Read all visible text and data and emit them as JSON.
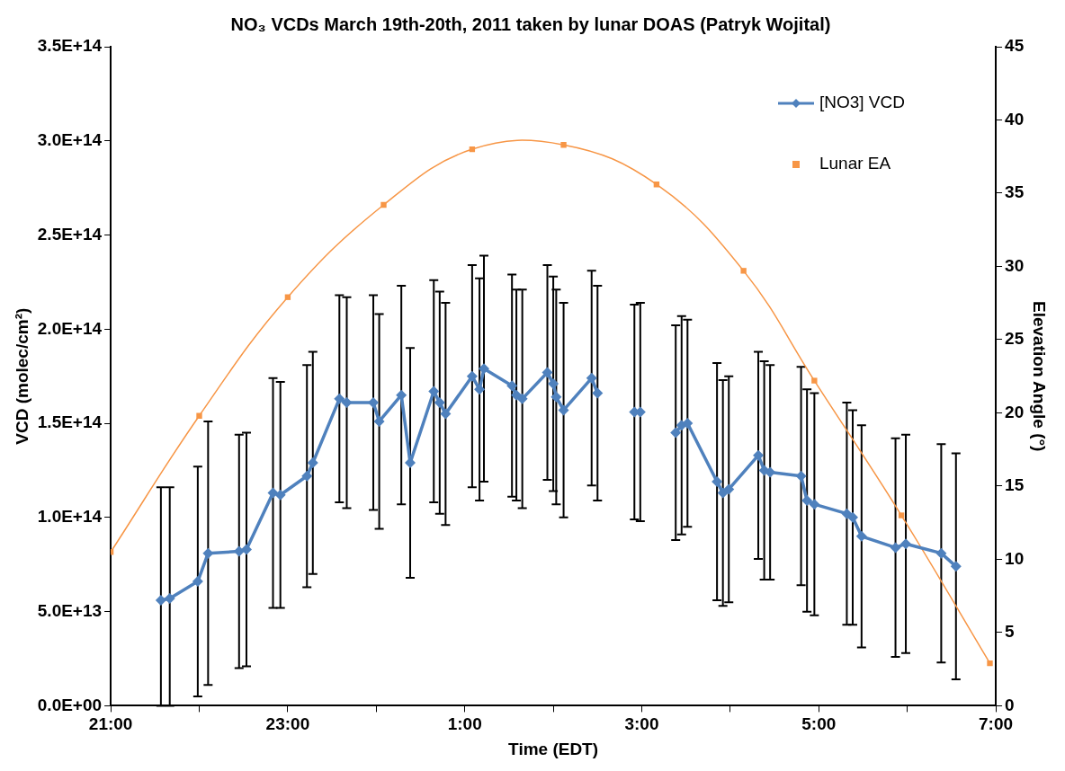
{
  "chart_data": {
    "type": "line",
    "title": "NO₃ VCDs March 19th-20th, 2011 taken by lunar DOAS (Patryk Wojital)",
    "xlabel": "Time (EDT)",
    "ylabel": "VCD (molec/cm²)",
    "y2label": "Elevation Angle (°)",
    "xlim": [
      "2011-03-19T21:00",
      "2011-03-20T07:00"
    ],
    "xticks": [
      {
        "value": "2011-03-19T21:00",
        "label": "21:00"
      },
      {
        "value": "2011-03-19T22:00",
        "label": null
      },
      {
        "value": "2011-03-19T23:00",
        "label": "23:00"
      },
      {
        "value": "2011-03-20T00:00",
        "label": null
      },
      {
        "value": "2011-03-20T01:00",
        "label": "1:00"
      },
      {
        "value": "2011-03-20T02:00",
        "label": null
      },
      {
        "value": "2011-03-20T03:00",
        "label": "3:00"
      },
      {
        "value": "2011-03-20T04:00",
        "label": null
      },
      {
        "value": "2011-03-20T05:00",
        "label": "5:00"
      },
      {
        "value": "2011-03-20T06:00",
        "label": null
      },
      {
        "value": "2011-03-20T07:00",
        "label": "7:00"
      }
    ],
    "ylim": [
      0,
      350000000000000.0
    ],
    "yticks": [
      {
        "value": 0,
        "label": "0.0E+00"
      },
      {
        "value": 50000000000000.0,
        "label": "5.0E+13"
      },
      {
        "value": 100000000000000.0,
        "label": "1.0E+14"
      },
      {
        "value": 150000000000000.0,
        "label": "1.5E+14"
      },
      {
        "value": 200000000000000.0,
        "label": "2.0E+14"
      },
      {
        "value": 250000000000000.0,
        "label": "2.5E+14"
      },
      {
        "value": 300000000000000.0,
        "label": "3.0E+14"
      },
      {
        "value": 350000000000000.0,
        "label": "3.5E+14"
      }
    ],
    "y2lim": [
      0,
      45
    ],
    "y2ticks": [
      0,
      5,
      10,
      15,
      20,
      25,
      30,
      35,
      40,
      45
    ],
    "grid": false,
    "legend": "top right",
    "series": [
      {
        "name": "[NO3] VCD",
        "type": "line",
        "color": "#4f81bd",
        "marker": "diamond",
        "line_style": "solid",
        "x": [
          "2011-03-19T21:34",
          "2011-03-19T21:40",
          "2011-03-19T21:59",
          "2011-03-19T22:06",
          "2011-03-19T22:27",
          "2011-03-19T22:32",
          "2011-03-19T22:50",
          "2011-03-19T22:55",
          "2011-03-19T23:13",
          "2011-03-19T23:17",
          "2011-03-19T23:35",
          "2011-03-19T23:40",
          "2011-03-19T23:58",
          "2011-03-20T00:02",
          "2011-03-20T00:17",
          "2011-03-20T00:23",
          "2011-03-20T00:39",
          "2011-03-20T00:43",
          "2011-03-20T00:47",
          "2011-03-20T01:05",
          "2011-03-20T01:10",
          "2011-03-20T01:13",
          "2011-03-20T01:32",
          "2011-03-20T01:35",
          "2011-03-20T01:39",
          "2011-03-20T01:56",
          "2011-03-20T02:00",
          "2011-03-20T02:02",
          "2011-03-20T02:07",
          "2011-03-20T02:26",
          "2011-03-20T02:30",
          "2011-03-20T02:42",
          "2011-03-20T02:55",
          "2011-03-20T02:59",
          "2011-03-20T03:12",
          "2011-03-20T03:23",
          "2011-03-20T03:27",
          "2011-03-20T03:31",
          "2011-03-20T03:51",
          "2011-03-20T03:55",
          "2011-03-20T03:59",
          "2011-03-20T04:19",
          "2011-03-20T04:23",
          "2011-03-20T04:27",
          "2011-03-20T04:48",
          "2011-03-20T04:52",
          "2011-03-20T04:57",
          "2011-03-20T05:19",
          "2011-03-20T05:23",
          "2011-03-20T05:29",
          "2011-03-20T05:52",
          "2011-03-20T05:59",
          "2011-03-20T06:23",
          "2011-03-20T06:33"
        ],
        "values": [
          56000000000000.0,
          57000000000000.0,
          66000000000000.0,
          81000000000000.0,
          82000000000000.0,
          83000000000000.0,
          113000000000000.0,
          112000000000000.0,
          122000000000000.0,
          129000000000000.0,
          163000000000000.0,
          161000000000000.0,
          161000000000000.0,
          151000000000000.0,
          165000000000000.0,
          129000000000000.0,
          167000000000000.0,
          161000000000000.0,
          155000000000000.0,
          175000000000000.0,
          168000000000000.0,
          179000000000000.0,
          170000000000000.0,
          165000000000000.0,
          163000000000000.0,
          177000000000000.0,
          171000000000000.0,
          164000000000000.0,
          157000000000000.0,
          174000000000000.0,
          166000000000000.0,
          null,
          156000000000000.0,
          156000000000000.0,
          null,
          145000000000000.0,
          149000000000000.0,
          150000000000000.0,
          119000000000000.0,
          113000000000000.0,
          115000000000000.0,
          133000000000000.0,
          125000000000000.0,
          124000000000000.0,
          122000000000000.0,
          109000000000000.0,
          107000000000000.0,
          102000000000000.0,
          100000000000000.0,
          90000000000000.0,
          84000000000000.0,
          86000000000000.0,
          81000000000000.0,
          74000000000000.0
        ],
        "errors": [
          [
            0,
            116000000000000.0
          ],
          [
            0,
            116000000000000.0
          ],
          61000000000000.0,
          70000000000000.0,
          62000000000000.0,
          62000000000000.0,
          61000000000000.0,
          60000000000000.0,
          59000000000000.0,
          59000000000000.0,
          55000000000000.0,
          56000000000000.0,
          57000000000000.0,
          57000000000000.0,
          58000000000000.0,
          61000000000000.0,
          59000000000000.0,
          59000000000000.0,
          59000000000000.0,
          59000000000000.0,
          59000000000000.0,
          60000000000000.0,
          59000000000000.0,
          56000000000000.0,
          58000000000000.0,
          57000000000000.0,
          57000000000000.0,
          57000000000000.0,
          57000000000000.0,
          57000000000000.0,
          57000000000000.0,
          null,
          57000000000000.0,
          58000000000000.0,
          null,
          57000000000000.0,
          58000000000000.0,
          55000000000000.0,
          63000000000000.0,
          60000000000000.0,
          60000000000000.0,
          55000000000000.0,
          58000000000000.0,
          57000000000000.0,
          58000000000000.0,
          59000000000000.0,
          59000000000000.0,
          59000000000000.0,
          57000000000000.0,
          59000000000000.0,
          58000000000000.0,
          58000000000000.0,
          58000000000000.0,
          60000000000000.0
        ]
      },
      {
        "name": "Lunar EA",
        "type": "line",
        "axis": "y2",
        "color": "#f79646",
        "marker": "square",
        "line_style": "solid",
        "x": [
          "2011-03-19T21:00",
          "2011-03-19T22:00",
          "2011-03-19T23:00",
          "2011-03-20T00:05",
          "2011-03-20T01:05",
          "2011-03-20T02:07",
          "2011-03-20T03:10",
          "2011-03-20T04:09",
          "2011-03-20T04:57",
          "2011-03-20T05:56",
          "2011-03-20T06:56"
        ],
        "values": [
          10.5,
          19.8,
          27.9,
          34.2,
          38.0,
          38.3,
          35.6,
          29.7,
          22.2,
          13.0,
          2.9
        ]
      }
    ]
  }
}
